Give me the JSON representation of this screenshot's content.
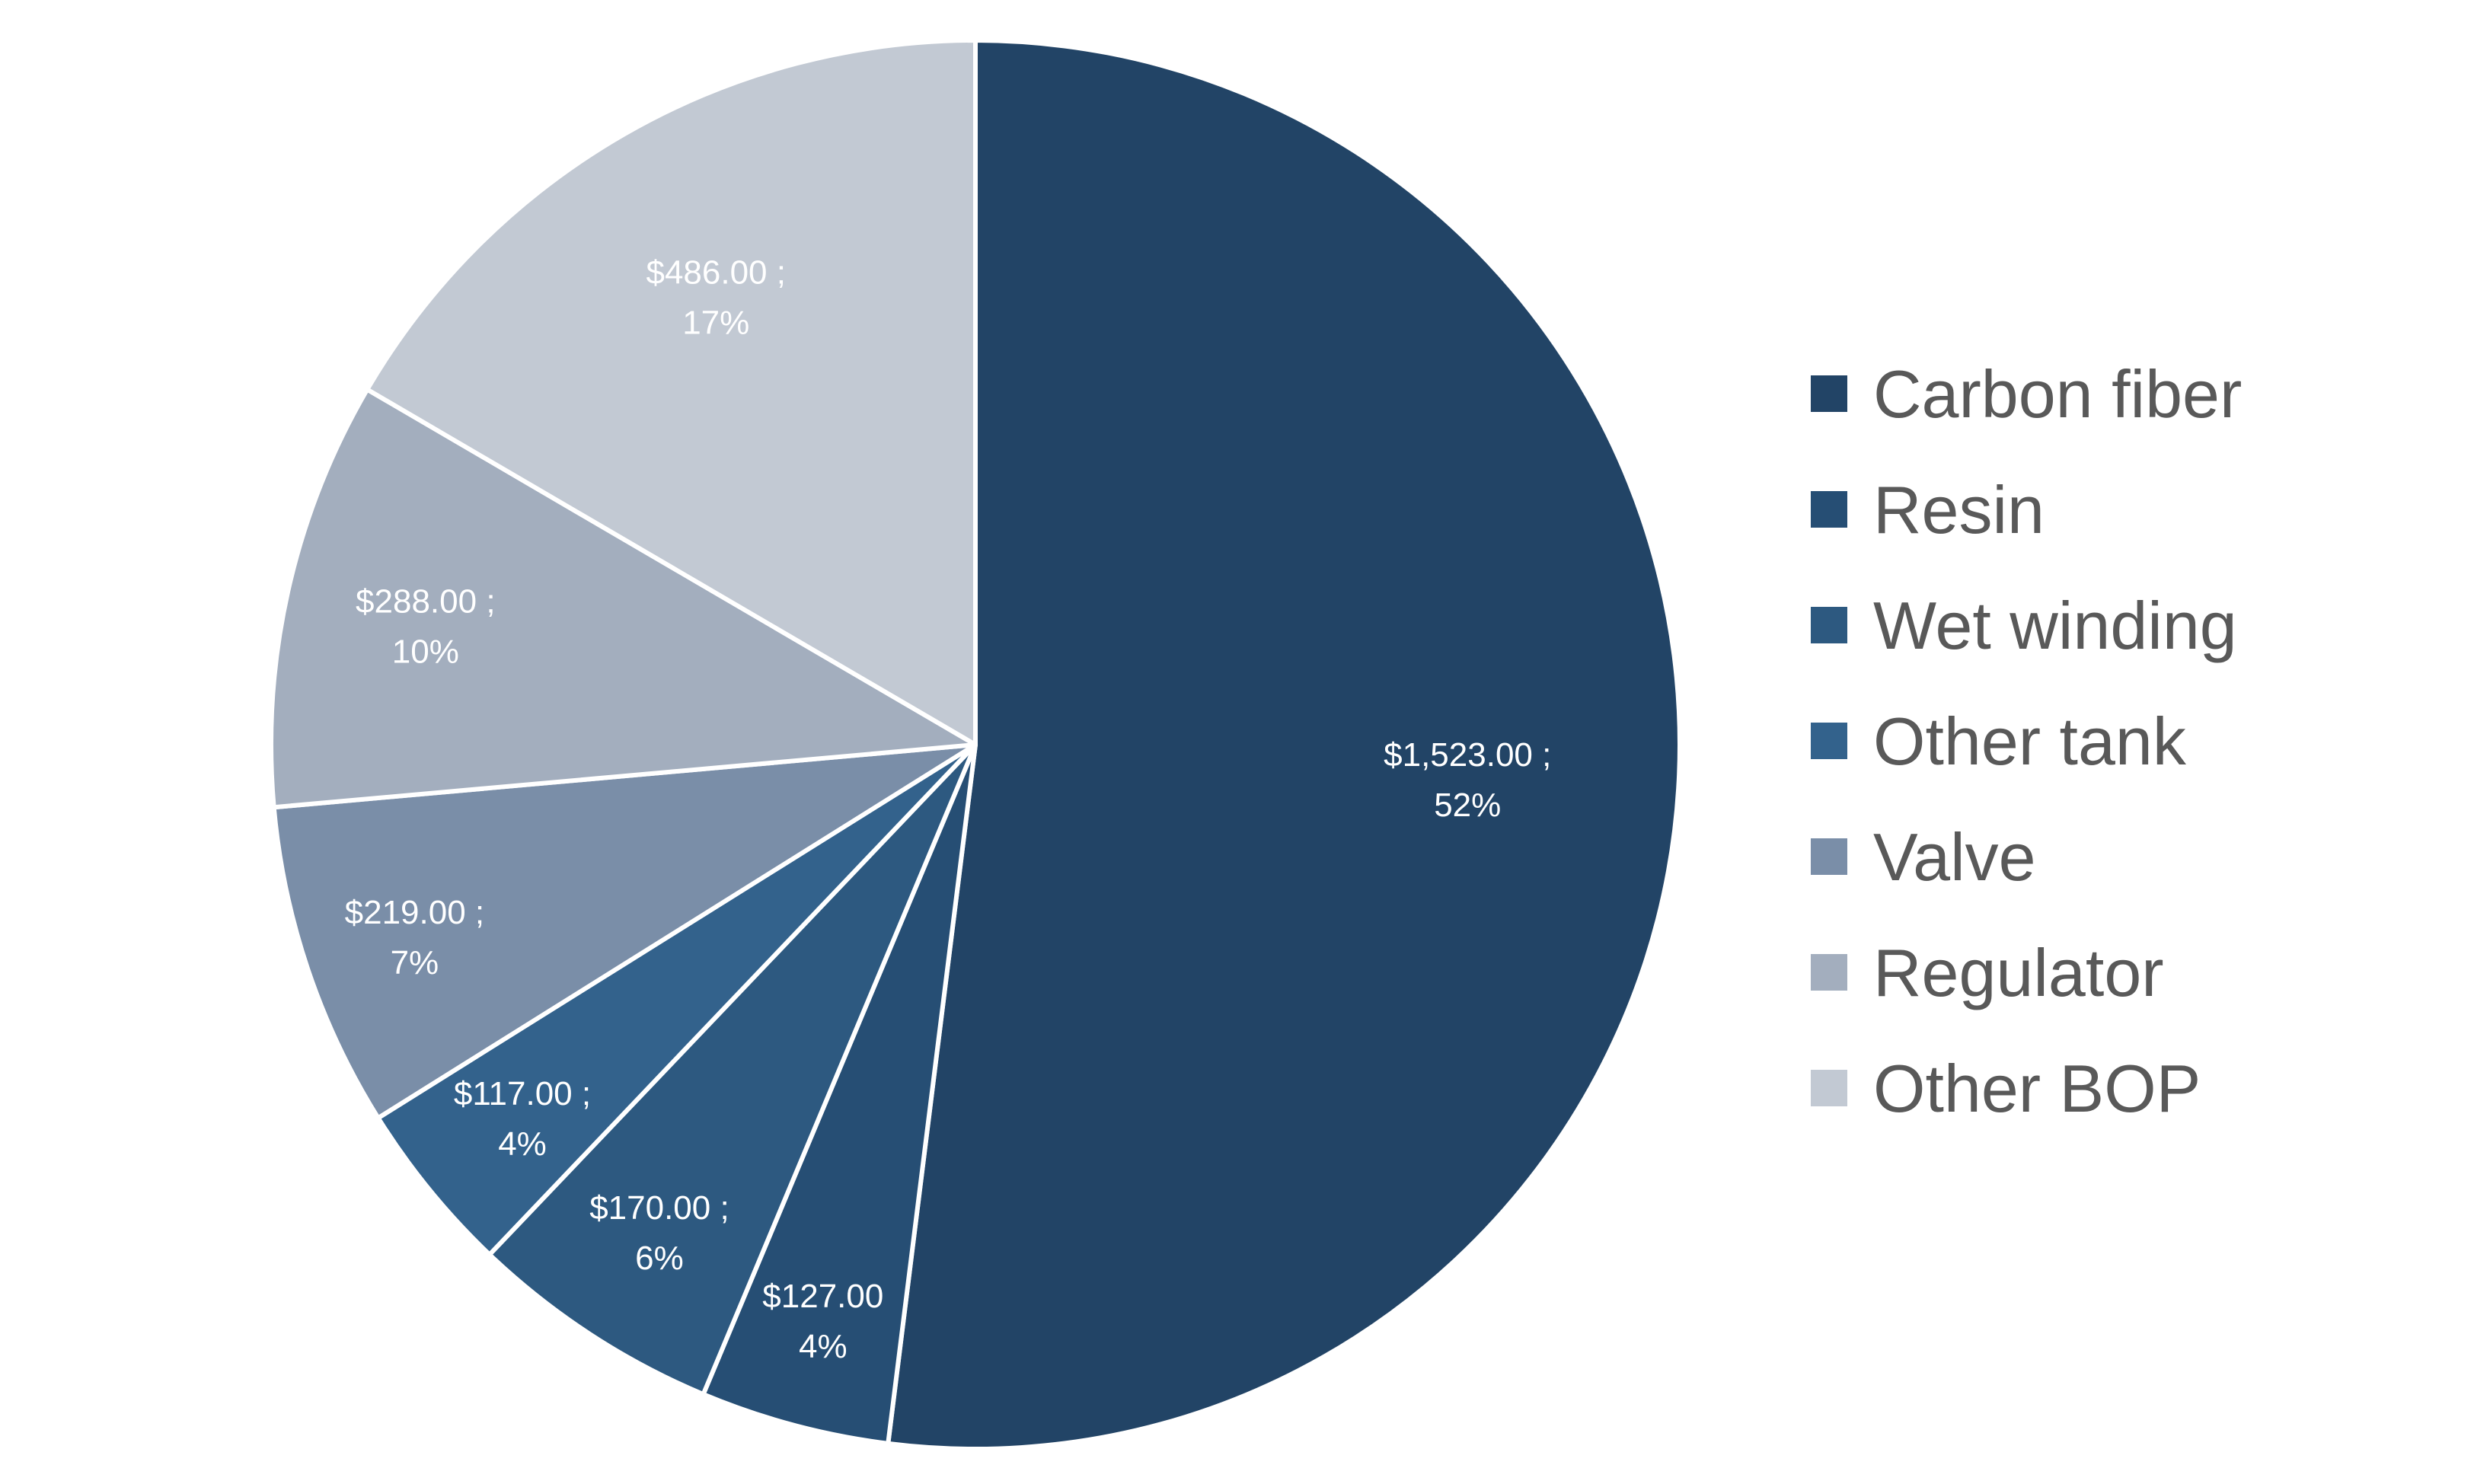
{
  "chart_data": {
    "type": "pie",
    "title": "",
    "start_angle_deg": 0,
    "direction": "clockwise",
    "legend_position": "right",
    "colors": {
      "slice_border": "#ffffff",
      "data_label_text": "#ffffff",
      "legend_text": "#595959"
    },
    "slices": [
      {
        "name": "Carbon fiber",
        "value": 1523,
        "percent": 52,
        "label_value": "$1,523.00 ;",
        "label_percent": "52%",
        "color": "#224466"
      },
      {
        "name": "Resin",
        "value": 127,
        "percent": 4,
        "label_value": "$127.00",
        "label_percent": "4%",
        "color": "#264e74"
      },
      {
        "name": "Wet winding",
        "value": 170,
        "percent": 6,
        "label_value": "$170.00 ;",
        "label_percent": "6%",
        "color": "#2d5980"
      },
      {
        "name": "Other tank",
        "value": 117,
        "percent": 4,
        "label_value": "$117.00 ;",
        "label_percent": "4%",
        "color": "#33628c"
      },
      {
        "name": "Valve",
        "value": 219,
        "percent": 7,
        "label_value": "$219.00 ;",
        "label_percent": "7%",
        "color": "#7a8ea8"
      },
      {
        "name": "Regulator",
        "value": 288,
        "percent": 10,
        "label_value": "$288.00 ;",
        "label_percent": "10%",
        "color": "#a3aebe"
      },
      {
        "name": "Other BOP",
        "value": 486,
        "percent": 17,
        "label_value": "$486.00 ;",
        "label_percent": "17%",
        "color": "#c2c9d3"
      }
    ]
  }
}
